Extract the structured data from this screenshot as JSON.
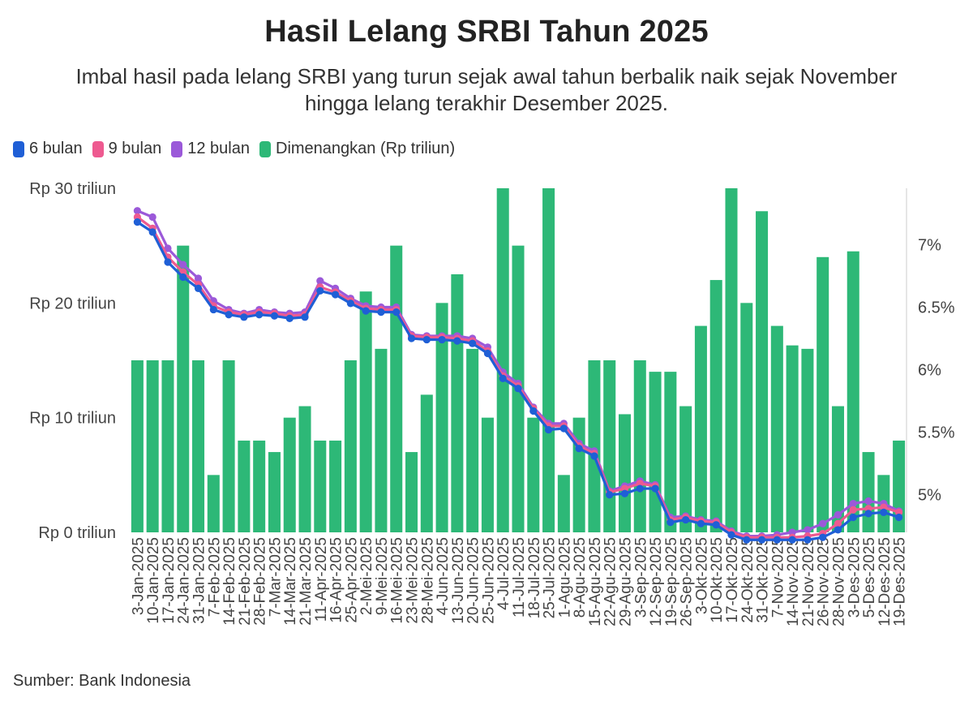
{
  "title": "Hasil Lelang SRBI Tahun 2025",
  "subtitle": "Imbal hasil pada lelang SRBI yang turun sejak awal tahun berbalik naik sejak November hingga lelang terakhir Desember 2025.",
  "source": "Sumber: Bank Indonesia",
  "colors": {
    "6 bulan": "#1f5fd6",
    "9 bulan": "#ee5a90",
    "12 bulan": "#9b59d9",
    "Dimenangkan": "#2db877"
  },
  "chart_data": {
    "type": "bar+line",
    "legend": [
      "6 bulan",
      "9 bulan",
      "12 bulan",
      "Dimenangkan (Rp triliun)"
    ],
    "legend_position": "top-left",
    "grid": false,
    "x_labels": [
      "3-Jan-2025",
      "10-Jan-2025",
      "17-Jan-2025",
      "24-Jan-2025",
      "31-Jan-2025",
      "7-Feb-2025",
      "14-Feb-2025",
      "21-Feb-2025",
      "28-Feb-2025",
      "7-Mar-2025",
      "14-Mar-2025",
      "21-Mar-2025",
      "11-Apr-2025",
      "16-Apr-2025",
      "25-Apr-2025",
      "2-Mei-2025",
      "9-Mei-2025",
      "16-Mei-2025",
      "23-Mei-2025",
      "28-Mei-2025",
      "4-Jun-2025",
      "13-Jun-2025",
      "20-Jun-2025",
      "25-Jun-2025",
      "4-Jul-2025",
      "11-Jul-2025",
      "18-Jul-2025",
      "25-Jul-2025",
      "1-Agu-2025",
      "8-Agu-2025",
      "15-Agu-2025",
      "22-Agu-2025",
      "29-Agu-2025",
      "3-Sep-2025",
      "12-Sep-2025",
      "19-Sep-2025",
      "26-Sep-2025",
      "3-Okt-2025",
      "10-Okt-2025",
      "17-Okt-2025",
      "24-Okt-2025",
      "31-Okt-2025",
      "7-Nov-2025",
      "14-Nov-2025",
      "21-Nov-2025",
      "26-Nov-2025",
      "28-Nov-2025",
      "3-Des-2025",
      "5-Des-2025",
      "12-Des-2025",
      "19-Des-2025"
    ],
    "y_left": {
      "ticks": [
        "Rp 0 triliun",
        "Rp 10 triliun",
        "Rp 20 triliun",
        "Rp 30 triliun"
      ],
      "range": [
        0,
        30
      ]
    },
    "y_right": {
      "ticks": [
        "5%",
        "5.5%",
        "6%",
        "6.5%",
        "7%"
      ],
      "range": [
        4.7,
        7.45
      ]
    },
    "bars": {
      "name": "Dimenangkan (Rp triliun)",
      "values": [
        15,
        15,
        15,
        25,
        15,
        5,
        15,
        8,
        8,
        7,
        10,
        11,
        8,
        8,
        15,
        21,
        16,
        25,
        7,
        12,
        20,
        22.5,
        16,
        10,
        30,
        25,
        10,
        30,
        5,
        10,
        15,
        15,
        10.3,
        15,
        14,
        14,
        11,
        18,
        22,
        30,
        20,
        28,
        18,
        16.3,
        16,
        24,
        11,
        24.5,
        7,
        5,
        8
      ]
    },
    "series": [
      {
        "name": "6 bulan",
        "values": [
          7.18,
          7.1,
          6.86,
          6.74,
          6.65,
          6.48,
          6.44,
          6.42,
          6.44,
          6.43,
          6.41,
          6.42,
          6.63,
          6.6,
          6.53,
          6.47,
          6.46,
          6.46,
          6.25,
          6.24,
          6.24,
          6.23,
          6.21,
          6.13,
          5.93,
          5.85,
          5.67,
          5.52,
          5.53,
          5.37,
          5.31,
          5.0,
          5.01,
          5.05,
          5.05,
          4.78,
          4.8,
          4.77,
          4.76,
          4.68,
          4.64,
          4.64,
          4.64,
          4.64,
          4.64,
          4.66,
          4.72,
          4.82,
          4.85,
          4.86,
          4.82
        ]
      },
      {
        "name": "9 bulan",
        "values": [
          7.22,
          7.13,
          6.9,
          6.78,
          6.68,
          6.51,
          6.46,
          6.44,
          6.46,
          6.45,
          6.43,
          6.44,
          6.66,
          6.62,
          6.55,
          6.49,
          6.48,
          6.48,
          6.27,
          6.26,
          6.26,
          6.25,
          6.23,
          6.15,
          5.95,
          5.87,
          5.69,
          5.55,
          5.55,
          5.39,
          5.33,
          5.02,
          5.05,
          5.09,
          5.07,
          4.8,
          4.82,
          4.79,
          4.78,
          4.7,
          4.66,
          4.66,
          4.66,
          4.66,
          4.67,
          4.69,
          4.77,
          4.88,
          4.89,
          4.9,
          4.86
        ]
      },
      {
        "name": "12 bulan",
        "values": [
          7.27,
          7.22,
          6.97,
          6.84,
          6.73,
          6.55,
          6.48,
          6.45,
          6.48,
          6.46,
          6.45,
          6.46,
          6.71,
          6.65,
          6.57,
          6.51,
          6.5,
          6.5,
          6.28,
          6.27,
          6.27,
          6.27,
          6.25,
          6.18,
          5.98,
          5.89,
          5.7,
          5.57,
          5.57,
          5.41,
          5.35,
          5.03,
          5.07,
          5.11,
          5.08,
          4.82,
          4.83,
          4.8,
          4.79,
          4.71,
          4.67,
          4.67,
          4.68,
          4.7,
          4.72,
          4.77,
          4.84,
          4.93,
          4.95,
          4.93,
          4.87
        ]
      }
    ]
  }
}
